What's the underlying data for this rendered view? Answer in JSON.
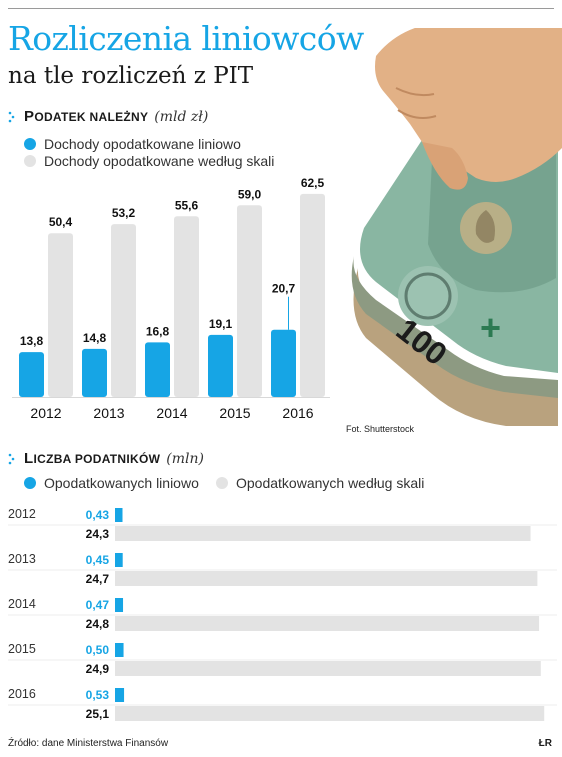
{
  "header": {
    "title": "Rozliczenia liniowców",
    "subtitle": "na tle rozliczeń z PIT"
  },
  "colors": {
    "accent": "#16a5e5",
    "secondary": "#e3e3e3"
  },
  "section1": {
    "heading_first": "P",
    "heading_rest": "ODATEK NALEŻNY",
    "unit": "(mld zł)",
    "legend": [
      "Dochody opodatkowane liniowo",
      "Dochody opodatkowane według skali"
    ]
  },
  "section2": {
    "heading_first": "L",
    "heading_rest": "ICZBA PODATNIKÓW",
    "unit": "(mln)",
    "legend": [
      "Opodatkowanych liniowo",
      "Opodatkowanych według skali"
    ]
  },
  "photo_credit": "Fot. Shutterstock",
  "footer": {
    "source": "Źródło: dane Ministerstwa Finansów",
    "mark": "ŁR"
  },
  "chart_data": [
    {
      "type": "bar",
      "title": "Podatek należny",
      "unit": "mld zł",
      "categories": [
        "2012",
        "2013",
        "2014",
        "2015",
        "2016"
      ],
      "series": [
        {
          "name": "Dochody opodatkowane liniowo",
          "values": [
            13.8,
            14.8,
            16.8,
            19.1,
            20.7
          ],
          "labels": [
            "13,8",
            "14,8",
            "16,8",
            "19,1",
            "20,7"
          ]
        },
        {
          "name": "Dochody opodatkowane według skali",
          "values": [
            50.4,
            53.2,
            55.6,
            59.0,
            62.5
          ],
          "labels": [
            "50,4",
            "53,2",
            "55,6",
            "59,0",
            "62,5"
          ]
        }
      ]
    },
    {
      "type": "bar",
      "orientation": "horizontal",
      "title": "Liczba podatników",
      "unit": "mln",
      "categories": [
        "2012",
        "2013",
        "2014",
        "2015",
        "2016"
      ],
      "series": [
        {
          "name": "Opodatkowanych liniowo",
          "values": [
            0.43,
            0.45,
            0.47,
            0.5,
            0.53
          ],
          "labels": [
            "0,43",
            "0,45",
            "0,47",
            "0,50",
            "0,53"
          ]
        },
        {
          "name": "Opodatkowanych według skali",
          "values": [
            24.3,
            24.7,
            24.8,
            24.9,
            25.1
          ],
          "labels": [
            "24,3",
            "24,7",
            "24,8",
            "24,9",
            "25,1"
          ]
        }
      ]
    }
  ]
}
